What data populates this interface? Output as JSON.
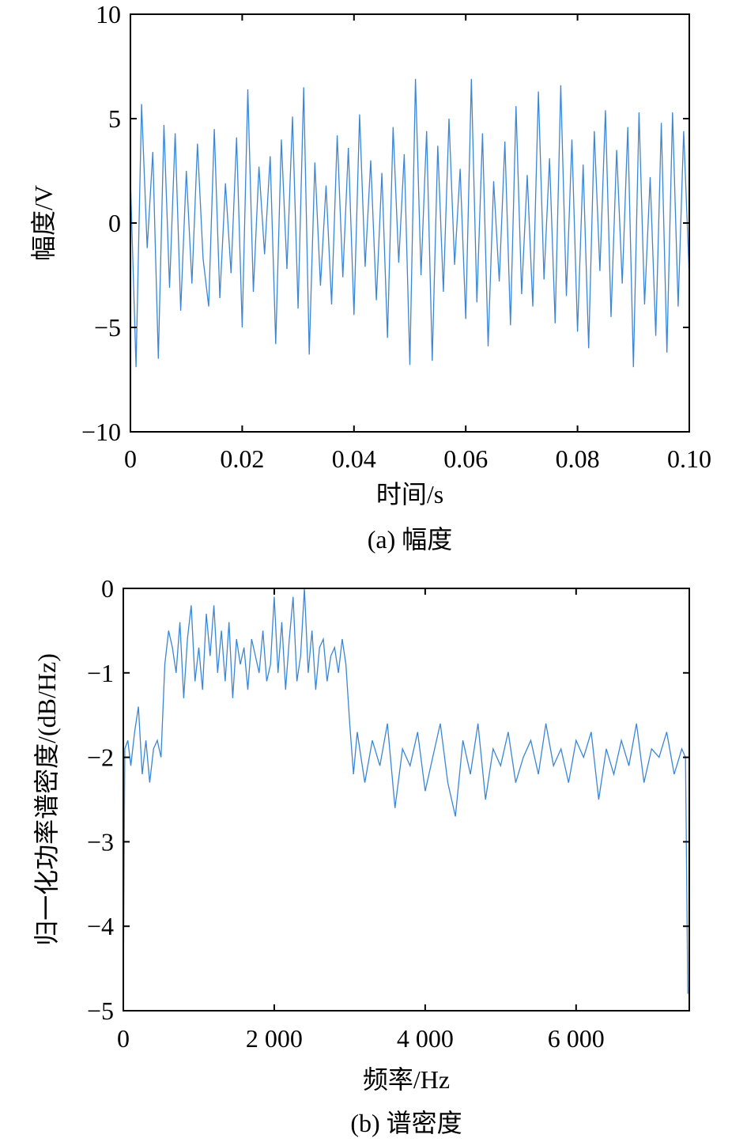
{
  "chart_data": [
    {
      "type": "line",
      "xlabel": "时间/s",
      "ylabel": "幅度/V",
      "caption": "(a) 幅度",
      "xlim": [
        0,
        0.1
      ],
      "ylim": [
        -10,
        10
      ],
      "xticks": [
        0,
        0.02,
        0.04,
        0.06,
        0.08,
        0.1
      ],
      "xtick_labels": [
        "0",
        "0.02",
        "0.04",
        "0.06",
        "0.08",
        "0.10"
      ],
      "yticks": [
        10,
        5,
        0,
        -5,
        -10
      ],
      "ytick_labels": [
        "10",
        "5",
        "0",
        "−5",
        "−10"
      ],
      "series": [
        {
          "color": "#3a86d8",
          "x": [
            0,
            0.001,
            0.002,
            0.003,
            0.004,
            0.005,
            0.006,
            0.007,
            0.008,
            0.009,
            0.01,
            0.011,
            0.012,
            0.013,
            0.014,
            0.015,
            0.016,
            0.017,
            0.018,
            0.019,
            0.02,
            0.021,
            0.022,
            0.023,
            0.024,
            0.025,
            0.026,
            0.027,
            0.028,
            0.029,
            0.03,
            0.031,
            0.032,
            0.033,
            0.034,
            0.035,
            0.036,
            0.037,
            0.038,
            0.039,
            0.04,
            0.041,
            0.042,
            0.043,
            0.044,
            0.045,
            0.046,
            0.047,
            0.048,
            0.049,
            0.05,
            0.051,
            0.052,
            0.053,
            0.054,
            0.055,
            0.056,
            0.057,
            0.058,
            0.059,
            0.06,
            0.061,
            0.062,
            0.063,
            0.064,
            0.065,
            0.066,
            0.067,
            0.068,
            0.069,
            0.07,
            0.071,
            0.072,
            0.073,
            0.074,
            0.075,
            0.076,
            0.077,
            0.078,
            0.079,
            0.08,
            0.081,
            0.082,
            0.083,
            0.084,
            0.085,
            0.086,
            0.087,
            0.088,
            0.089,
            0.09,
            0.091,
            0.092,
            0.093,
            0.094,
            0.095,
            0.096,
            0.097,
            0.098,
            0.099,
            0.1
          ],
          "values": [
            2.1,
            -6.9,
            5.7,
            -1.2,
            3.4,
            -6.5,
            4.7,
            -3.1,
            4.3,
            -4.2,
            2.5,
            -2.9,
            3.8,
            -1.7,
            -4.0,
            4.5,
            -3.6,
            1.9,
            -2.4,
            4.1,
            -5.0,
            6.4,
            -3.3,
            2.7,
            -1.5,
            3.2,
            -5.8,
            4.0,
            -2.2,
            5.1,
            -4.1,
            6.5,
            -6.3,
            2.9,
            -3.0,
            1.8,
            -3.9,
            4.2,
            -2.6,
            3.6,
            -4.4,
            5.2,
            -2.1,
            3.0,
            -3.7,
            2.4,
            -5.5,
            4.6,
            -1.9,
            3.3,
            -6.8,
            6.9,
            -2.5,
            4.4,
            -6.6,
            3.7,
            -3.3,
            5.0,
            -2.0,
            2.6,
            -4.6,
            6.9,
            -3.8,
            4.3,
            -5.9,
            2.0,
            -2.8,
            3.9,
            -4.9,
            5.6,
            -3.4,
            2.3,
            -4.0,
            6.3,
            -2.7,
            3.1,
            -4.8,
            6.6,
            -3.5,
            4.0,
            -5.2,
            2.8,
            -6.0,
            4.4,
            -2.3,
            5.4,
            -4.5,
            3.5,
            -2.9,
            4.6,
            -6.9,
            5.3,
            -3.9,
            2.2,
            -5.4,
            4.8,
            -6.2,
            5.3,
            -4.0,
            4.4,
            -2.6
          ]
        }
      ]
    },
    {
      "type": "line",
      "xlabel": "频率/Hz",
      "ylabel": "归一化功率谱密度/(dB/Hz)",
      "caption": "(b) 谱密度",
      "xlim": [
        0,
        7500
      ],
      "ylim": [
        -5,
        0
      ],
      "xticks": [
        0,
        2000,
        4000,
        6000
      ],
      "xtick_labels": [
        "0",
        "2 000",
        "4 000",
        "6 000"
      ],
      "yticks": [
        0,
        -1,
        -2,
        -3,
        -4,
        -5
      ],
      "ytick_labels": [
        "0",
        "−1",
        "−2",
        "−3",
        "−4",
        "−5"
      ],
      "series": [
        {
          "color": "#3a86d8",
          "x": [
            0,
            20,
            60,
            100,
            150,
            200,
            250,
            300,
            350,
            400,
            450,
            500,
            550,
            600,
            650,
            700,
            750,
            800,
            850,
            900,
            950,
            1000,
            1050,
            1100,
            1150,
            1200,
            1250,
            1300,
            1350,
            1400,
            1450,
            1500,
            1550,
            1600,
            1650,
            1700,
            1750,
            1800,
            1850,
            1900,
            1950,
            2000,
            2050,
            2100,
            2150,
            2200,
            2250,
            2300,
            2350,
            2400,
            2450,
            2500,
            2550,
            2600,
            2650,
            2700,
            2750,
            2800,
            2850,
            2900,
            2950,
            3000,
            3050,
            3100,
            3150,
            3200,
            3300,
            3400,
            3500,
            3600,
            3700,
            3800,
            3900,
            4000,
            4100,
            4200,
            4300,
            4400,
            4500,
            4600,
            4700,
            4800,
            4900,
            5000,
            5100,
            5200,
            5300,
            5400,
            5500,
            5600,
            5700,
            5800,
            5900,
            6000,
            6100,
            6200,
            6300,
            6400,
            6500,
            6600,
            6700,
            6800,
            6900,
            7000,
            7100,
            7200,
            7300,
            7400,
            7450,
            7480
          ],
          "values": [
            -4.8,
            -1.9,
            -1.8,
            -2.1,
            -1.7,
            -1.4,
            -2.2,
            -1.8,
            -2.3,
            -1.9,
            -1.8,
            -2.0,
            -0.9,
            -0.5,
            -0.7,
            -1.0,
            -0.4,
            -1.3,
            -0.6,
            -0.2,
            -1.1,
            -0.7,
            -1.2,
            -0.3,
            -0.8,
            -0.2,
            -1.0,
            -0.5,
            -1.1,
            -0.4,
            -1.3,
            -0.6,
            -0.9,
            -0.7,
            -1.2,
            -0.6,
            -0.8,
            -1.0,
            -0.5,
            -1.1,
            -0.9,
            -0.1,
            -1.0,
            -0.4,
            -1.2,
            -0.6,
            -0.1,
            -1.1,
            -0.8,
            -0.0,
            -1.0,
            -0.5,
            -1.2,
            -0.7,
            -0.6,
            -1.1,
            -0.8,
            -0.7,
            -1.0,
            -0.6,
            -0.9,
            -1.6,
            -2.2,
            -1.7,
            -2.0,
            -2.3,
            -1.8,
            -2.1,
            -1.6,
            -2.6,
            -1.9,
            -2.1,
            -1.7,
            -2.4,
            -2.0,
            -1.6,
            -2.3,
            -2.7,
            -1.8,
            -2.2,
            -1.6,
            -2.5,
            -1.9,
            -2.1,
            -1.7,
            -2.3,
            -2.0,
            -1.8,
            -2.2,
            -1.6,
            -2.1,
            -1.9,
            -2.3,
            -1.8,
            -2.0,
            -1.7,
            -2.5,
            -1.9,
            -2.2,
            -1.8,
            -2.1,
            -1.6,
            -2.3,
            -1.9,
            -2.0,
            -1.7,
            -2.2,
            -1.9,
            -2.0,
            -4.8
          ]
        }
      ]
    }
  ]
}
